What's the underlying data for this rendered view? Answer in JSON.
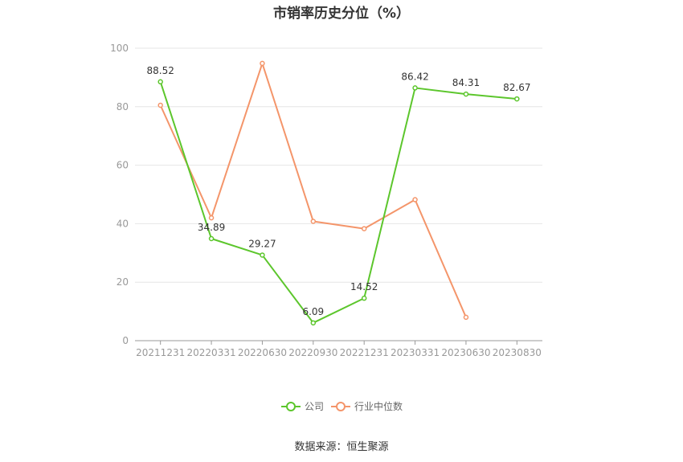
{
  "chart_data": {
    "type": "line",
    "title": "市销率历史分位（%）",
    "xlabel": "",
    "ylabel": "",
    "ylim": [
      0,
      100
    ],
    "yticks": [
      0,
      20,
      40,
      60,
      80,
      100
    ],
    "categories": [
      "20211231",
      "20220331",
      "20220630",
      "20220930",
      "20221231",
      "20230331",
      "20230630",
      "20230830"
    ],
    "series": [
      {
        "name": "公司",
        "color": "#5cc62c",
        "values": [
          88.52,
          34.89,
          29.27,
          6.09,
          14.52,
          86.42,
          84.31,
          82.67
        ],
        "labels": [
          "88.52",
          "34.89",
          "29.27",
          "6.09",
          "14.52",
          "86.42",
          "84.31",
          "82.67"
        ]
      },
      {
        "name": "行业中位数",
        "color": "#f4956a",
        "values": [
          80.5,
          42.0,
          94.8,
          40.8,
          38.3,
          48.2,
          8.0,
          null
        ]
      }
    ],
    "grid": true,
    "legend": "bottom-center"
  },
  "source": "数据来源：恒生聚源"
}
